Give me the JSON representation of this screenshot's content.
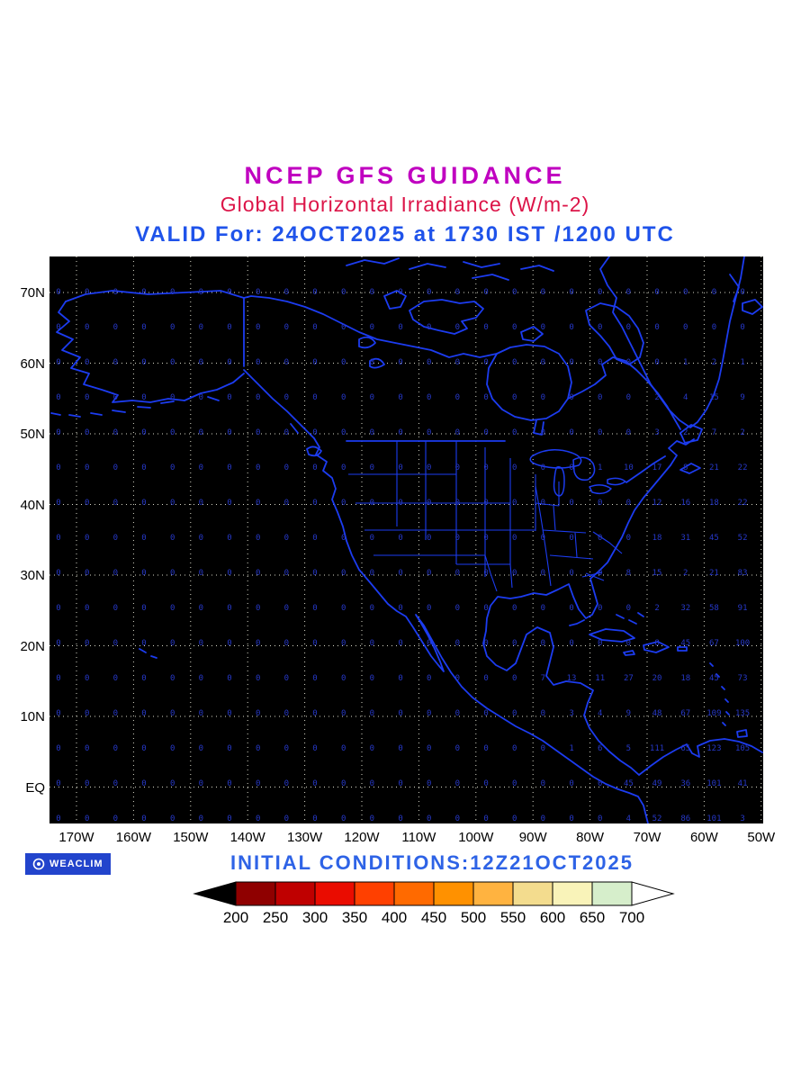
{
  "header": {
    "title": "NCEP GFS GUIDANCE",
    "subtitle": "Global Horizontal Irradiance (W/m-2)",
    "valid_line": "VALID For: 24OCT2025 at 1730 IST /1200 UTC"
  },
  "footer": {
    "logo": "WEACLIM",
    "initial_conditions": "INITIAL CONDITIONS:12Z21OCT2025"
  },
  "colors": {
    "title": "#c000c0",
    "subtitle": "#dc1448",
    "valid": "#1f53ea",
    "initial_conditions": "#2e63e6",
    "coast": "#1c3cf0",
    "values": "#2638c8",
    "grid_dots": "#d8d8c8",
    "map_bg": "#000000",
    "logo_bg": "#2244cc",
    "axis_text": "#000000"
  },
  "chart_data": {
    "type": "heatmap",
    "title": "NCEP GFS GUIDANCE",
    "subtitle": "Global Horizontal Irradiance (W/m-2)",
    "unit": "W/m-2",
    "valid": "24OCT2025 at 1730 IST / 1200 UTC",
    "initialized": "12Z21OCT2025",
    "region": "North America / East Pacific / West Atlantic",
    "lat_ticks": [
      "70N",
      "60N",
      "50N",
      "40N",
      "30N",
      "20N",
      "10N",
      "EQ"
    ],
    "lon_ticks": [
      "170W",
      "160W",
      "150W",
      "140W",
      "130W",
      "120W",
      "110W",
      "100W",
      "90W",
      "80W",
      "70W",
      "60W",
      "50W"
    ],
    "grid": "dotted graticule every 10 degrees",
    "legend_position": "bottom",
    "colorbar": {
      "tick_values": [
        200,
        250,
        300,
        350,
        400,
        450,
        500,
        550,
        600,
        650,
        700
      ],
      "segment_colors": [
        "#8f0000",
        "#bf0000",
        "#ea0c00",
        "#ff4000",
        "#ff6a00",
        "#ff9100",
        "#ffb340",
        "#f3dc8e",
        "#f9f3b9",
        "#d6eecb"
      ],
      "under_arrow_color": "#000000",
      "over_arrow_color": "#ffffff"
    },
    "value_grid_note": "gridpoint GHI values plotted every 5 degrees, 175W-55W (left to right) and 73N-EQ (top to bottom); night side is 0",
    "value_grid_rows": [
      "0 0 0 0 0 0 0 0 0 0 0 0 0 0 0 0 0 0 0 0 0 0 0 0 0",
      "0 0 0 0 0 0 0 0 0 0 0 0 0 0 0 0 0 0 0 0 0 0 0 0 0",
      "0 0 0 0 0 0 0 0 0 0 0 0 0 0 0 0 0 0 0 0 0 0 1 2 1",
      "0 0 0 0 0 0 0 0 0 0 0 0 0 0 0 0 0 0 0 0 0 2 4 15 9",
      "0 0 0 0 0 0 0 0 0 0 0 0 0 0 0 0 0 0 0 0 0 3 2 7 2",
      "0 0 0 0 0 0 0 0 0 0 0 0 0 0 0 0 0 0 0 1 10 17 8 21 22",
      "0 0 0 0 0 0 0 0 0 0 0 0 0 0 0 0 0 0 0 0 0 12 16 18 22",
      "0 0 0 0 0 0 0 0 0 0 0 0 0 0 0 0 0 0 0 0 0 18 31 45 52",
      "0 0 0 0 0 0 0 0 0 0 0 0 0 0 0 0 0 0 0 0 8 15 2 21 83",
      "0 0 0 0 0 0 0 0 0 0 0 0 0 0 0 0 0 0 0 0 0 2 32 58 91",
      "0 0 0 0 0 0 0 0 0 0 0 0 0 0 0 0 0 0 0 0 0 8 45 67 100",
      "0 0 0 0 0 0 0 0 0 0 0 0 0 0 0 0 0 7 13 11 27 20 18 45 73",
      "0 0 0 0 0 0 0 0 0 0 0 0 0 0 0 0 0 0 3 4 9 48 67 109 135",
      "0 0 0 0 0 0 0 0 0 0 0 0 0 0 0 0 0 0 1 6 5 111 65 123 105",
      "0 0 0 0 0 0 0 0 0 0 0 0 0 0 0 0 0 0 0 0 45 49 36 101 41",
      "0 0 0 0 0 0 0 0 0 0 0 0 0 0 0 0 0 0 0 0 4 52 86 101 3"
    ]
  }
}
